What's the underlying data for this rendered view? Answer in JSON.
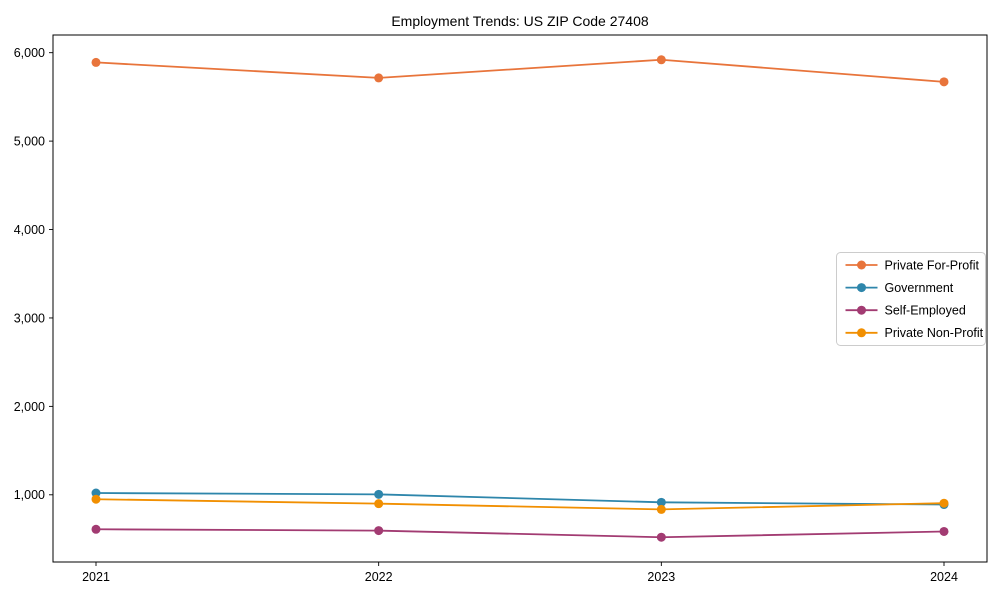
{
  "chart_data": {
    "type": "line",
    "title": "Employment Trends: US ZIP Code 27408",
    "x": [
      "2021",
      "2022",
      "2023",
      "2024"
    ],
    "series": [
      {
        "name": "Private For-Profit",
        "color": "#e8743b",
        "values": [
          5890,
          5715,
          5920,
          5670
        ]
      },
      {
        "name": "Government",
        "color": "#2e86ab",
        "values": [
          1020,
          1005,
          915,
          890
        ]
      },
      {
        "name": "Self-Employed",
        "color": "#a23b72",
        "values": [
          610,
          595,
          520,
          585
        ]
      },
      {
        "name": "Private Non-Profit",
        "color": "#f18f01",
        "values": [
          950,
          900,
          835,
          905
        ]
      }
    ],
    "xlabel": "",
    "ylabel": "",
    "ylim": [
      240,
      6200
    ],
    "yticks": [
      1000,
      2000,
      3000,
      4000,
      5000,
      6000
    ],
    "ytick_labels": [
      "1,000",
      "2,000",
      "3,000",
      "4,000",
      "5,000",
      "6,000"
    ],
    "xtick_labels": [
      "2021",
      "2022",
      "2023",
      "2024"
    ],
    "grid": false,
    "legend_position": "center right",
    "legend_border_color": "#cccccc",
    "axis_color": "#000000",
    "background_color": "#ffffff",
    "marker": "circle"
  }
}
